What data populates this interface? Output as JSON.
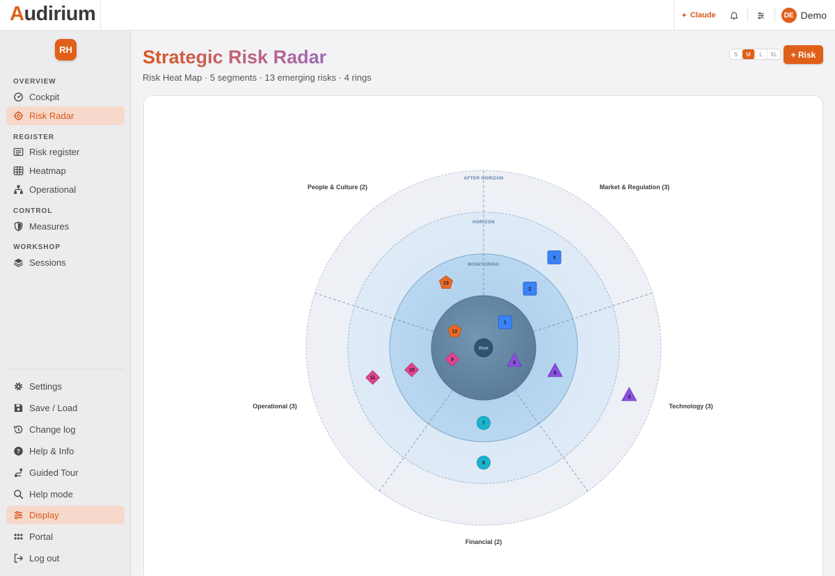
{
  "app": {
    "logo_first": "A",
    "logo_rest": "udirium"
  },
  "topbar": {
    "claude_label": "Claude",
    "bell_icon": "bell-icon",
    "settings_icon": "sliders-icon",
    "user_initials": "DE",
    "user_name": "Demo"
  },
  "sidebar": {
    "org_badge": "RH",
    "sections": {
      "overview": "OVERVIEW",
      "register": "REGISTER",
      "control": "CONTROL",
      "workshop": "WORKSHOP"
    },
    "items": {
      "cockpit": "Cockpit",
      "risk_radar": "Risk Radar",
      "risk_register": "Risk register",
      "heatmap": "Heatmap",
      "operational": "Operational",
      "measures": "Measures",
      "sessions": "Sessions"
    },
    "footer": {
      "settings": "Settings",
      "save_load": "Save / Load",
      "change_log": "Change log",
      "help_info": "Help & Info",
      "guided_tour": "Guided Tour",
      "help_mode": "Help mode",
      "display": "Display",
      "portal": "Portal",
      "log_out": "Log out"
    }
  },
  "main": {
    "title": "Strategic Risk Radar",
    "subtitle": "Risk Heat Map · 5 segments · 13 emerging risks · 4 rings",
    "size_options": [
      "S",
      "M",
      "L",
      "XL"
    ],
    "size_selected": "M",
    "add_risk_label": "+ Risk"
  },
  "radar": {
    "center_label": "Risk",
    "rings": [
      "ACTION",
      "MONITORING",
      "HORIZON",
      "AFTER HORIZON"
    ],
    "segments": [
      {
        "label": "People & Culture (2)"
      },
      {
        "label": "Market & Regulation (3)"
      },
      {
        "label": "Technology (3)"
      },
      {
        "label": "Financial (2)"
      },
      {
        "label": "Operational (3)"
      }
    ],
    "colors": {
      "technology": "#3b82f6",
      "market": "#4f86f7",
      "people": "#e86a26",
      "operational": "#e0458f",
      "financial": "#19b5cf",
      "tech_triangle": "#8a4fe0"
    },
    "risks": [
      {
        "id": "1",
        "shape": "square",
        "color": "#3b82f6",
        "ring": 1,
        "angle": 40
      },
      {
        "id": "2",
        "shape": "square",
        "color": "#3b82f6",
        "ring": 2,
        "angle": 38
      },
      {
        "id": "3",
        "shape": "square",
        "color": "#3b82f6",
        "ring": 3,
        "angle": 38
      },
      {
        "id": "4",
        "shape": "triangle",
        "color": "#8a4fe0",
        "ring": 4,
        "angle": 108
      },
      {
        "id": "5",
        "shape": "triangle",
        "color": "#8a4fe0",
        "ring": 1,
        "angle": 113
      },
      {
        "id": "6",
        "shape": "triangle",
        "color": "#8a4fe0",
        "ring": 2,
        "angle": 108
      },
      {
        "id": "7",
        "shape": "circle",
        "color": "#19b5cf",
        "ring": 2,
        "angle": 180
      },
      {
        "id": "8",
        "shape": "circle",
        "color": "#19b5cf",
        "ring": 3,
        "angle": 180
      },
      {
        "id": "9",
        "shape": "diamond",
        "color": "#e0458f",
        "ring": 1,
        "angle": 250
      },
      {
        "id": "10",
        "shape": "diamond",
        "color": "#e0458f",
        "ring": 2,
        "angle": 253
      },
      {
        "id": "11",
        "shape": "diamond",
        "color": "#e0458f",
        "ring": 3,
        "angle": 255
      },
      {
        "id": "12",
        "shape": "pentagon",
        "color": "#e86a26",
        "ring": 1,
        "angle": 300
      },
      {
        "id": "13",
        "shape": "pentagon",
        "color": "#e86a26",
        "ring": 2,
        "angle": 330
      }
    ]
  }
}
